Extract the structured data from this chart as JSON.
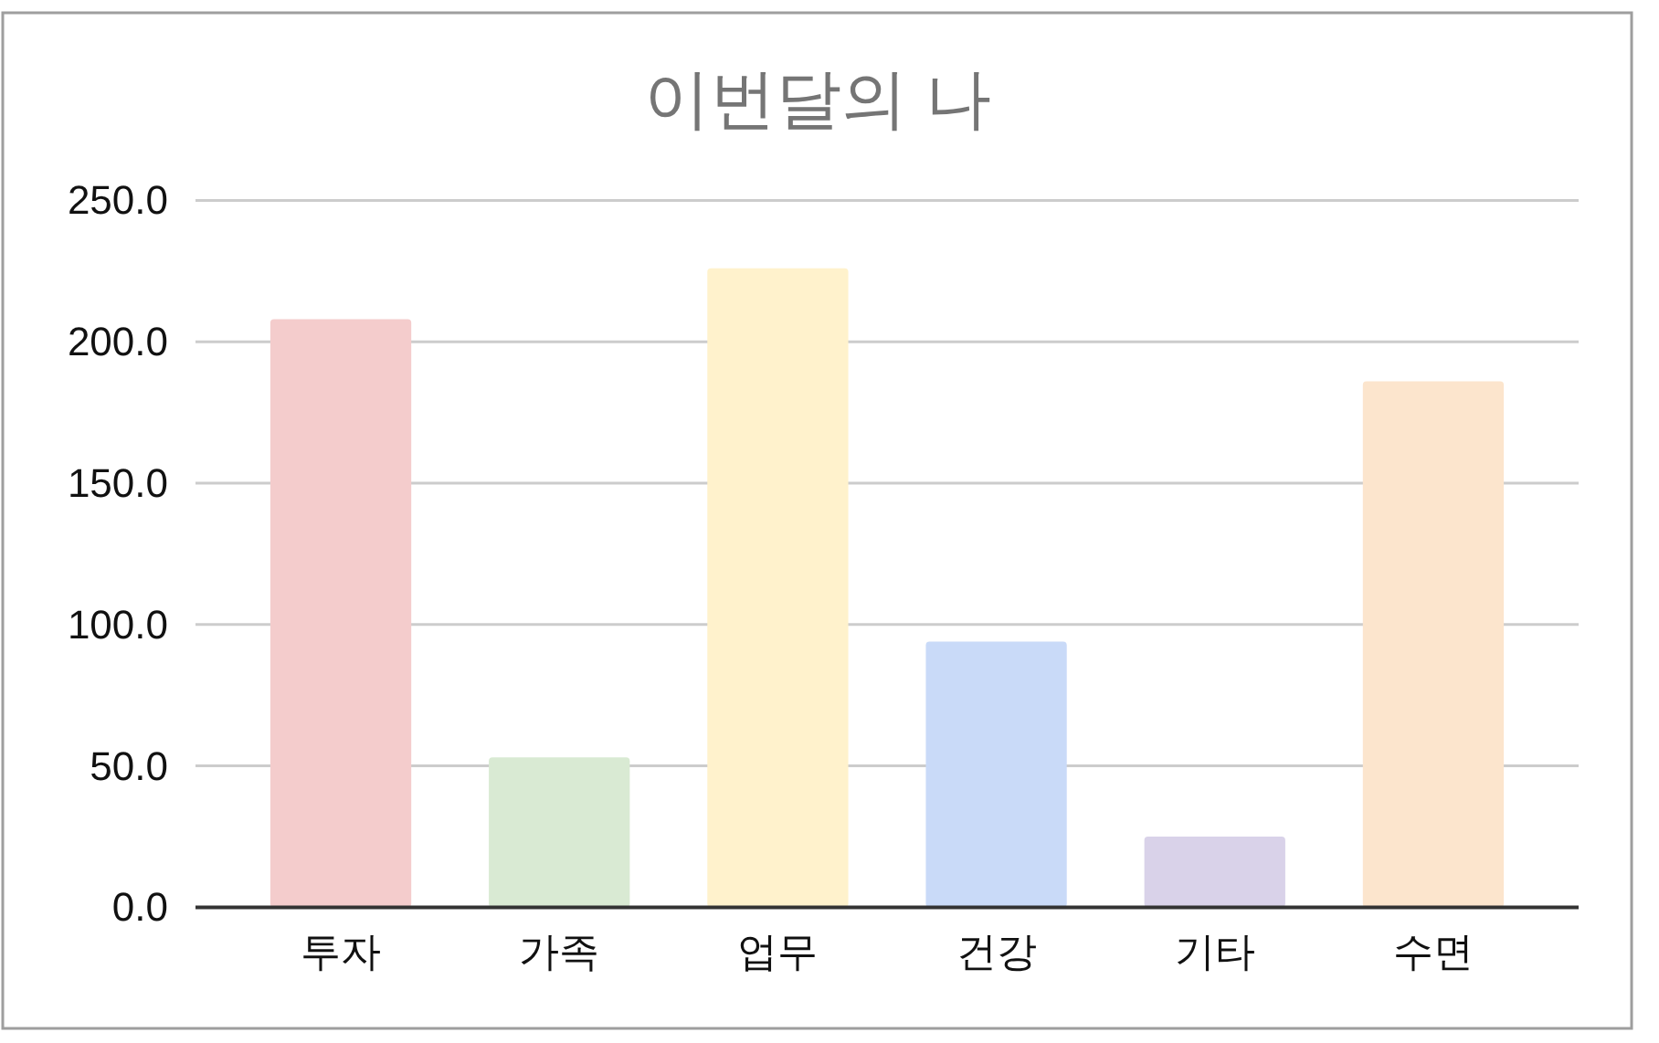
{
  "chart_data": {
    "type": "bar",
    "title": "이번달의 나",
    "categories": [
      "투자",
      "가족",
      "업무",
      "건강",
      "기타",
      "수면"
    ],
    "values": [
      208,
      53,
      226,
      94,
      25,
      186
    ],
    "colors": [
      "#f4cccc",
      "#d9ead3",
      "#fff2cc",
      "#c9daf8",
      "#d9d2e9",
      "#fce5cd"
    ],
    "ylim": [
      0,
      250
    ],
    "yticks": [
      {
        "value": 0,
        "label": "0.0"
      },
      {
        "value": 50,
        "label": "50.0"
      },
      {
        "value": 100,
        "label": "100.0"
      },
      {
        "value": 150,
        "label": "150.0"
      },
      {
        "value": 200,
        "label": "200.0"
      },
      {
        "value": 250,
        "label": "250.0"
      }
    ],
    "grid": "y"
  }
}
